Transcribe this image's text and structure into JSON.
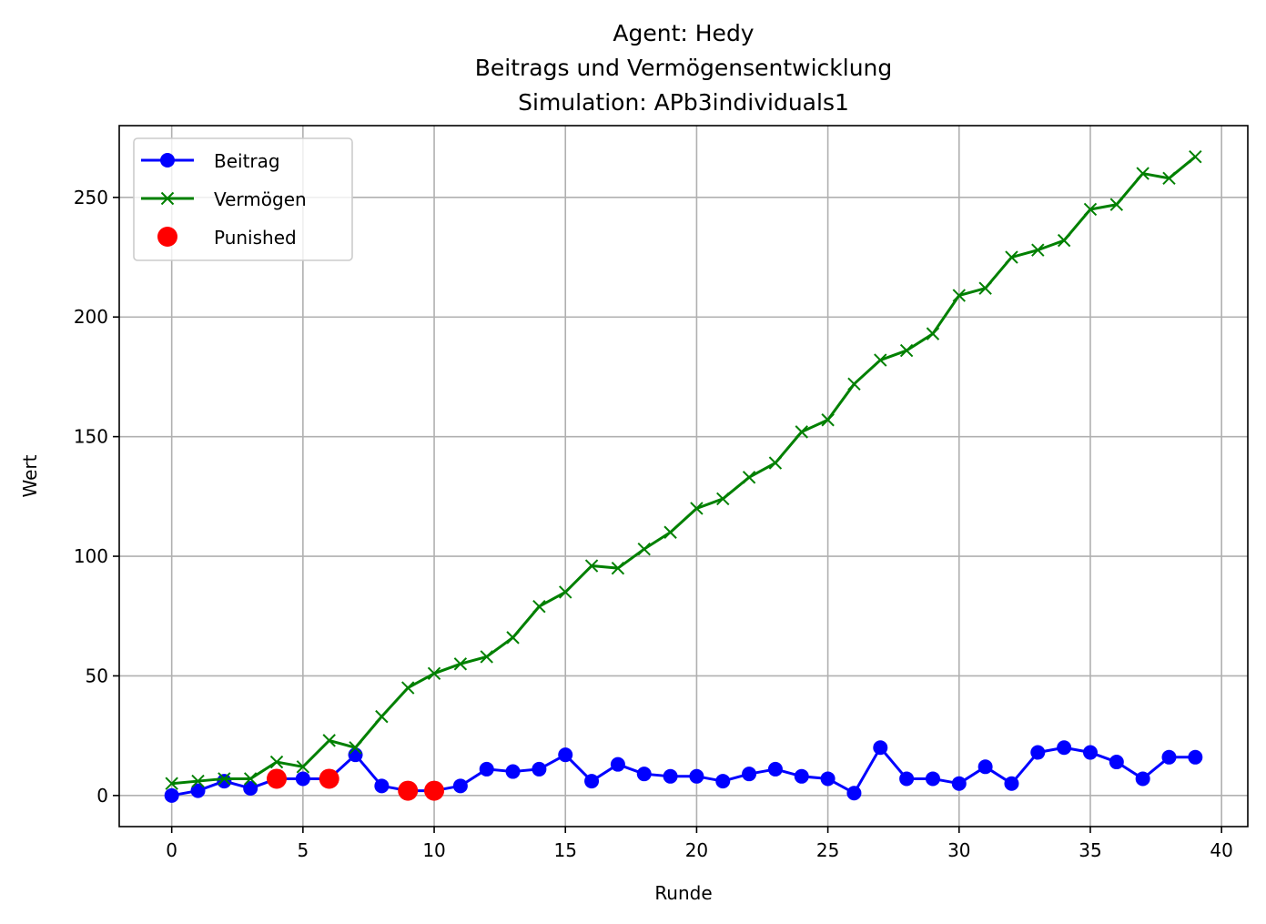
{
  "chart_data": {
    "type": "line",
    "title": [
      "Agent: Hedy",
      "Beitrags und Vermögensentwicklung",
      "Simulation: APb3individuals1"
    ],
    "xlabel": "Runde",
    "ylabel": "Wert",
    "xlim": [
      -2,
      41
    ],
    "ylim": [
      -13,
      280
    ],
    "x_ticks": [
      0,
      5,
      10,
      15,
      20,
      25,
      30,
      35,
      40
    ],
    "y_ticks": [
      0,
      50,
      100,
      150,
      200,
      250
    ],
    "grid": true,
    "legend_position": "top-left",
    "x": [
      0,
      1,
      2,
      3,
      4,
      5,
      6,
      7,
      8,
      9,
      10,
      11,
      12,
      13,
      14,
      15,
      16,
      17,
      18,
      19,
      20,
      21,
      22,
      23,
      24,
      25,
      26,
      27,
      28,
      29,
      30,
      31,
      32,
      33,
      34,
      35,
      36,
      37,
      38,
      39
    ],
    "series": [
      {
        "name": "Beitrag",
        "color": "#0000ff",
        "marker": "circle",
        "values": [
          0,
          2,
          6,
          3,
          7,
          7,
          7,
          17,
          4,
          2,
          2,
          4,
          11,
          10,
          11,
          17,
          6,
          13,
          9,
          8,
          8,
          6,
          9,
          11,
          8,
          7,
          1,
          20,
          7,
          7,
          5,
          12,
          5,
          18,
          20,
          18,
          14,
          7,
          16,
          16
        ]
      },
      {
        "name": "Vermögen",
        "color": "#008000",
        "marker": "x",
        "values": [
          5,
          6,
          7,
          7,
          14,
          12,
          23,
          20,
          33,
          45,
          51,
          55,
          58,
          66,
          79,
          85,
          96,
          95,
          103,
          110,
          120,
          124,
          133,
          139,
          152,
          157,
          172,
          182,
          186,
          193,
          209,
          212,
          225,
          228,
          232,
          245,
          247,
          260,
          258,
          267
        ]
      }
    ],
    "punished": {
      "name": "Punished",
      "color": "#ff0000",
      "points": [
        [
          4,
          7
        ],
        [
          6,
          7
        ],
        [
          9,
          2
        ],
        [
          10,
          2
        ]
      ]
    }
  }
}
